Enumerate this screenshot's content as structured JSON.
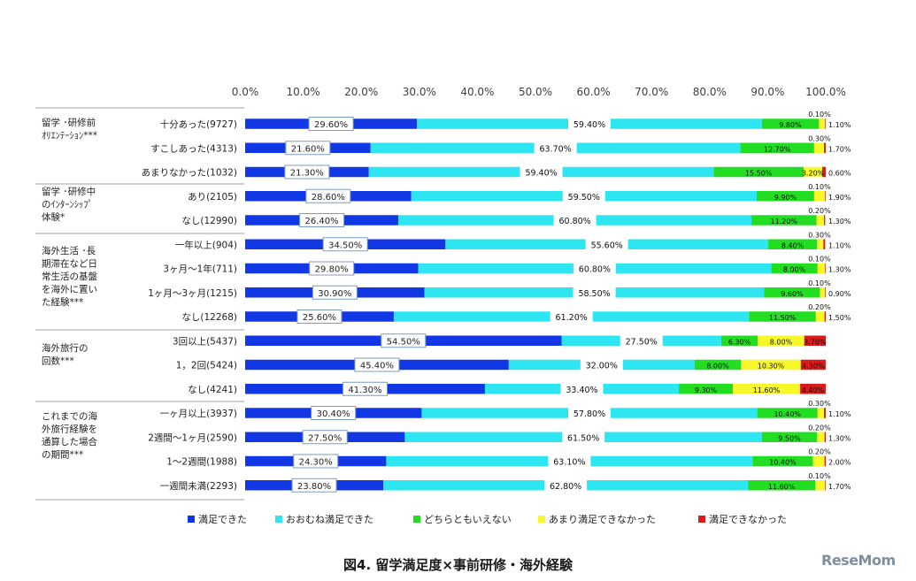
{
  "chart_data": {
    "type": "bar",
    "stacked": true,
    "orientation": "horizontal",
    "x_ticks": [
      "0.0%",
      "10.0%",
      "20.0%",
      "30.0%",
      "40.0%",
      "50.0%",
      "60.0%",
      "70.0%",
      "80.0%",
      "90.0%",
      "100.0%"
    ],
    "xlim": [
      0,
      100
    ],
    "series_names": [
      "満足できた",
      "おおむね満足できた",
      "どちらともいえない",
      "あまり満足できなかった",
      "満足できなかった"
    ],
    "colors": [
      "#1238e6",
      "#2ee6f2",
      "#22dd22",
      "#f7f72a",
      "#dd1a1a"
    ],
    "groups": [
      {
        "label_lines": [
          "留学 ･研修前",
          "ｵﾘｴﾝﾃｰｼｮﾝ***"
        ],
        "rows": [
          {
            "category": "十分あった(9727)",
            "values": [
              29.6,
              59.4,
              9.8,
              1.1,
              0.1
            ],
            "labels": [
              "29.60%",
              "59.40%",
              "9.80%",
              "1.10%",
              "0.10%"
            ]
          },
          {
            "category": "すこしあった(4313)",
            "values": [
              21.6,
              63.7,
              12.7,
              1.7,
              0.3
            ],
            "labels": [
              "21.60%",
              "63.70%",
              "12.70%",
              "1.70%",
              "0.30%"
            ]
          },
          {
            "category": "あまりなかった(1032)",
            "values": [
              21.3,
              59.4,
              15.5,
              3.2,
              0.6
            ],
            "labels": [
              "21.30%",
              "59.40%",
              "15.50%",
              "3.20%",
              "0.60%"
            ]
          }
        ]
      },
      {
        "label_lines": [
          "留学 ･研修中",
          "のｲﾝﾀｰﾝｼｯﾌﾟ",
          "体験*"
        ],
        "rows": [
          {
            "category": "あり(2105)",
            "values": [
              28.6,
              59.5,
              9.9,
              1.9,
              0.1
            ],
            "labels": [
              "28.60%",
              "59.50%",
              "9.90%",
              "1.90%",
              "0.10%"
            ]
          },
          {
            "category": "なし(12990)",
            "values": [
              26.4,
              60.8,
              11.2,
              1.3,
              0.2
            ],
            "labels": [
              "26.40%",
              "60.80%",
              "11.20%",
              "1.30%",
              "0.20%"
            ]
          }
        ]
      },
      {
        "label_lines": [
          "海外生活 ･長",
          "期滞在など日",
          "常生活の基盤",
          "を海外に置い",
          "た経験***"
        ],
        "rows": [
          {
            "category": "一年以上(904)",
            "values": [
              34.5,
              55.6,
              8.4,
              1.1,
              0.3
            ],
            "labels": [
              "34.50%",
              "55.60%",
              "8.40%",
              "1.10%",
              "0.30%"
            ]
          },
          {
            "category": "3ヶ月～1年(711)",
            "values": [
              29.8,
              60.8,
              8.0,
              1.3,
              0.1
            ],
            "labels": [
              "29.80%",
              "60.80%",
              "8.00%",
              "1.30%",
              "0.10%"
            ]
          },
          {
            "category": "1ヶ月～3ヶ月(1215)",
            "values": [
              30.9,
              58.5,
              9.6,
              0.9,
              0.1
            ],
            "labels": [
              "30.90%",
              "58.50%",
              "9.60%",
              "0.90%",
              "0.10%"
            ]
          },
          {
            "category": "なし(12268)",
            "values": [
              25.6,
              61.2,
              11.5,
              1.5,
              0.2
            ],
            "labels": [
              "25.60%",
              "61.20%",
              "11.50%",
              "1.50%",
              "0.20%"
            ]
          }
        ]
      },
      {
        "label_lines": [
          "海外旅行の",
          "回数***"
        ],
        "rows": [
          {
            "category": "3回以上(5437)",
            "values": [
              54.5,
              27.5,
              6.3,
              8.0,
              3.7
            ],
            "labels": [
              "54.50%",
              "27.50%",
              "6.30%",
              "8.00%",
              "3.70%"
            ]
          },
          {
            "category": "1，2回(5424)",
            "values": [
              45.4,
              32.0,
              8.0,
              10.3,
              4.3
            ],
            "labels": [
              "45.40%",
              "32.00%",
              "8.00%",
              "10.30%",
              "4.30%"
            ]
          },
          {
            "category": "なし(4241)",
            "values": [
              41.3,
              33.4,
              9.3,
              11.6,
              4.4
            ],
            "labels": [
              "41.30%",
              "33.40%",
              "9.30%",
              "11.60%",
              "4.40%"
            ]
          }
        ]
      },
      {
        "label_lines": [
          "これまでの海",
          "外旅行経験を",
          "通算した場合",
          "の期間***"
        ],
        "rows": [
          {
            "category": "一ヶ月以上(3937)",
            "values": [
              30.4,
              57.8,
              10.4,
              1.1,
              0.3
            ],
            "labels": [
              "30.40%",
              "57.80%",
              "10.40%",
              "1.10%",
              "0.30%"
            ]
          },
          {
            "category": "2週間～1ヶ月(2590)",
            "values": [
              27.5,
              61.5,
              9.5,
              1.3,
              0.2
            ],
            "labels": [
              "27.50%",
              "61.50%",
              "9.50%",
              "1.30%",
              "0.20%"
            ]
          },
          {
            "category": "1～2週間(1988)",
            "values": [
              24.3,
              63.1,
              10.4,
              2.0,
              0.2
            ],
            "labels": [
              "24.30%",
              "63.10%",
              "10.40%",
              "2.00%",
              "0.20%"
            ]
          },
          {
            "category": "一週間未満(2293)",
            "values": [
              23.8,
              62.8,
              11.6,
              1.7,
              0.1
            ],
            "labels": [
              "23.80%",
              "62.80%",
              "11.60%",
              "1.70%",
              "0.10%"
            ]
          }
        ]
      }
    ]
  },
  "caption": "図4.  留学満足度×事前研修・海外経験",
  "watermark": "ReseMom"
}
